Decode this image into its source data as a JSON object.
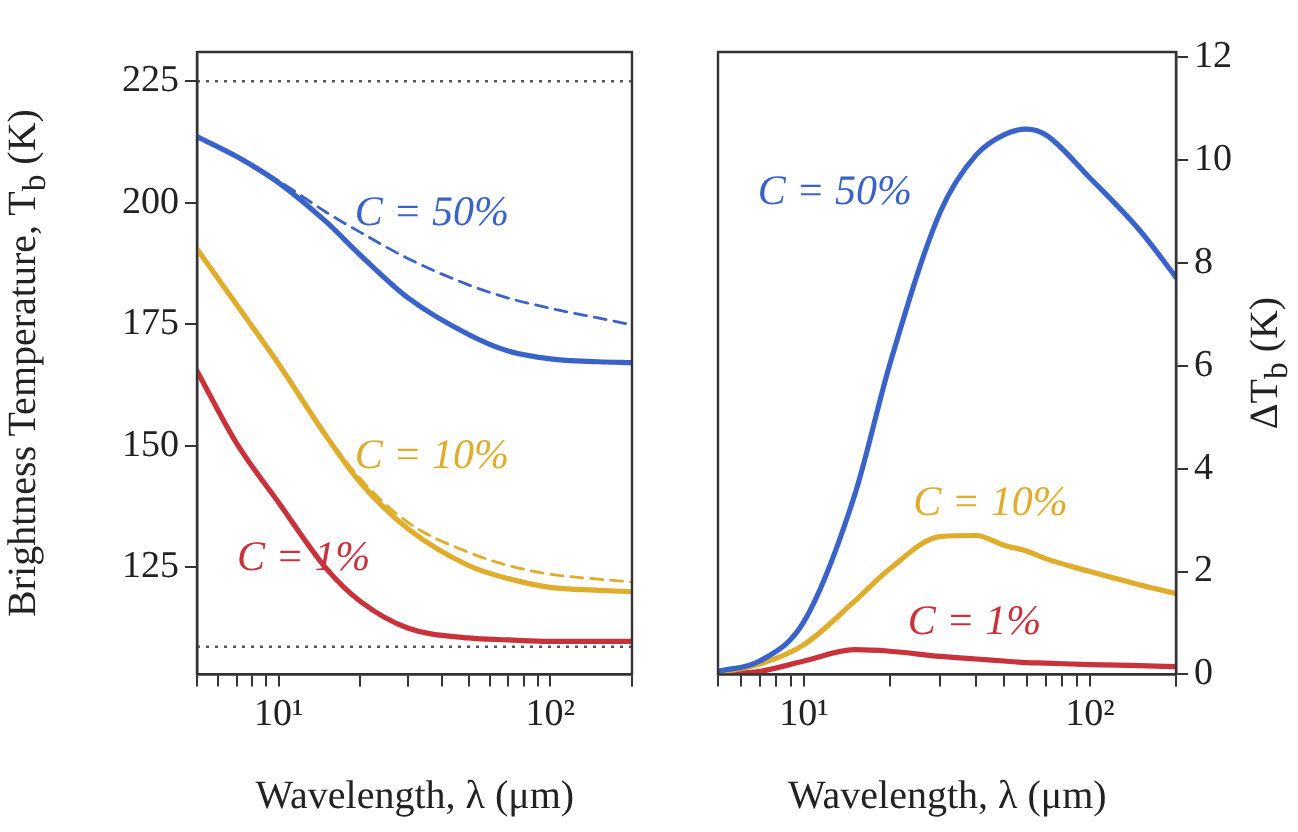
{
  "chart_data": [
    {
      "type": "line",
      "xlabel": "Wavelength, λ (μm)",
      "ylabel": "Brightness Temperature, T$_{b}$ (K)",
      "log": "x",
      "legend": false,
      "marker": "none",
      "xlim": [
        5,
        200
      ],
      "ylim": [
        103,
        231
      ],
      "yticks": [
        125,
        150,
        175,
        200,
        225
      ],
      "xticks": [
        {
          "value": 5,
          "label": null
        },
        {
          "value": 6,
          "label": null
        },
        {
          "value": 7,
          "label": null
        },
        {
          "value": 8,
          "label": null
        },
        {
          "value": 9,
          "label": null
        },
        {
          "value": 10,
          "label": "10¹"
        },
        {
          "value": 20,
          "label": null
        },
        {
          "value": 30,
          "label": null
        },
        {
          "value": 40,
          "label": null
        },
        {
          "value": 50,
          "label": null
        },
        {
          "value": 60,
          "label": null
        },
        {
          "value": 70,
          "label": null
        },
        {
          "value": 80,
          "label": null
        },
        {
          "value": 90,
          "label": null
        },
        {
          "value": 100,
          "label": "10²"
        },
        {
          "value": 200,
          "label": null
        }
      ],
      "x": [
        5,
        7,
        10,
        15,
        20,
        30,
        50,
        70,
        100,
        150,
        200
      ],
      "ref_lines": [
        {
          "axis": "y",
          "value": 225,
          "color": "#555555",
          "line_style": "dotted"
        },
        {
          "axis": "y",
          "value": 108.7,
          "color": "#555555",
          "line_style": "dotted"
        }
      ],
      "series": [
        {
          "name": "C = 50%",
          "color": "#3a63c9",
          "line_style": "solid",
          "values": [
            213.6,
            209.5,
            204.1,
            196,
            189.2,
            180.4,
            172.9,
            169.5,
            167.9,
            167.3,
            167.1
          ]
        },
        {
          "color": "#3a63c9",
          "line_style": "dashed",
          "values": [
            213.6,
            209.5,
            204.5,
            198,
            193.9,
            188.5,
            183.1,
            180.4,
            178.3,
            176.3,
            174.9
          ]
        },
        {
          "name": "C = 10%",
          "color": "#e0ac2b",
          "line_style": "solid",
          "values": [
            190.5,
            179,
            166.8,
            151.9,
            142.4,
            132.9,
            125.4,
            122.7,
            120.9,
            120.3,
            120
          ]
        },
        {
          "color": "#e0ac2b",
          "line_style": "dashed",
          "values": [
            190.5,
            179,
            166.8,
            152.2,
            143.2,
            134.2,
            128.1,
            125.4,
            123.6,
            122.6,
            122
          ]
        },
        {
          "name": "C = 1%",
          "color": "#c8323a",
          "line_style": "solid",
          "values": [
            165.4,
            150.5,
            138.3,
            124.7,
            118,
            112.5,
            110.5,
            110.1,
            109.8,
            109.8,
            109.8
          ]
        }
      ]
    },
    {
      "type": "line",
      "xlabel": "Wavelength, λ (μm)",
      "y2label": "ΔT$_{b}$ (K)",
      "log": "x",
      "legend": false,
      "marker": "none",
      "xlim": [
        5,
        200
      ],
      "y2lim": [
        0,
        12.1
      ],
      "y2ticks": [
        0,
        2,
        4,
        6,
        8,
        10,
        12
      ],
      "xticks": [
        {
          "value": 5,
          "label": null
        },
        {
          "value": 6,
          "label": null
        },
        {
          "value": 7,
          "label": null
        },
        {
          "value": 8,
          "label": null
        },
        {
          "value": 9,
          "label": null
        },
        {
          "value": 10,
          "label": "10¹"
        },
        {
          "value": 20,
          "label": null
        },
        {
          "value": 30,
          "label": null
        },
        {
          "value": 40,
          "label": null
        },
        {
          "value": 50,
          "label": null
        },
        {
          "value": 60,
          "label": null
        },
        {
          "value": 70,
          "label": null
        },
        {
          "value": 80,
          "label": null
        },
        {
          "value": 90,
          "label": null
        },
        {
          "value": 100,
          "label": "10²"
        },
        {
          "value": 200,
          "label": null
        }
      ],
      "x": [
        5,
        7,
        10,
        15,
        20,
        30,
        40,
        50,
        60,
        70,
        100,
        150,
        200
      ],
      "series": [
        {
          "name": "C = 50%",
          "color": "#3a63c9",
          "axis": "y2",
          "values": [
            0.06,
            0.26,
            1.03,
            3.47,
            6.05,
            9.0,
            10.1,
            10.49,
            10.6,
            10.49,
            9.65,
            8.62,
            7.72
          ]
        },
        {
          "name": "C = 10%",
          "color": "#e0ac2b",
          "axis": "y2",
          "values": [
            0.03,
            0.2,
            0.58,
            1.42,
            2.06,
            2.68,
            2.7,
            2.51,
            2.4,
            2.25,
            2.0,
            1.74,
            1.57
          ]
        },
        {
          "name": "C = 1%",
          "color": "#c8323a",
          "axis": "y2",
          "values": [
            0,
            0.06,
            0.26,
            0.48,
            0.45,
            0.35,
            0.3,
            0.26,
            0.23,
            0.22,
            0.19,
            0.17,
            0.15
          ]
        }
      ]
    }
  ]
}
